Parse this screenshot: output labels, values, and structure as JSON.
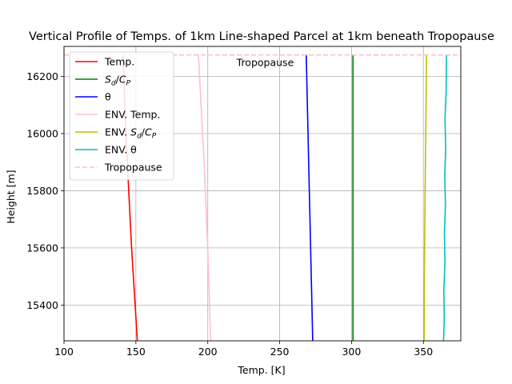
{
  "chart_data": {
    "type": "line",
    "title": "Vertical Profile of Temps. of 1km Line-shaped Parcel at 1km beneath Tropopause",
    "xlabel": "Temp. [K]",
    "ylabel": "Height [m]",
    "xlim": [
      100,
      376
    ],
    "ylim": [
      15275,
      16305
    ],
    "xticks": [
      100,
      150,
      200,
      250,
      300,
      350
    ],
    "yticks": [
      15400,
      15600,
      15800,
      16000,
      16200
    ],
    "grid": true,
    "legend_position": "top-left",
    "annotation": "Tropopause",
    "series": [
      {
        "key": "temp",
        "name": "Temp.",
        "color": "#ff0000",
        "dashed": false,
        "points": [
          [
            151,
            15275
          ],
          [
            147,
            15600
          ],
          [
            144,
            15900
          ],
          [
            143,
            16000
          ],
          [
            141,
            16275
          ]
        ]
      },
      {
        "key": "sd_cp",
        "name": "S_d/C_P",
        "color": "#008000",
        "dashed": false,
        "points": [
          [
            301,
            15275
          ],
          [
            301,
            16275
          ]
        ]
      },
      {
        "key": "theta",
        "name": "θ",
        "color": "#0000ff",
        "dashed": false,
        "points": [
          [
            273,
            15275
          ],
          [
            268.5,
            16275
          ]
        ]
      },
      {
        "key": "env_temp",
        "name": "ENV. Temp.",
        "color": "#ffc0cb",
        "dashed": false,
        "points": [
          [
            202,
            15275
          ],
          [
            200,
            15600
          ],
          [
            197.5,
            15900
          ],
          [
            193.5,
            16275
          ]
        ]
      },
      {
        "key": "env_sd_cp",
        "name": "ENV. S_d/C_P",
        "color": "#bfbf00",
        "dashed": false,
        "points": [
          [
            350.5,
            15275
          ],
          [
            350.6,
            15500
          ],
          [
            351,
            15700
          ],
          [
            351.2,
            15800
          ],
          [
            351.6,
            16000
          ],
          [
            352,
            16200
          ],
          [
            352.2,
            16275
          ]
        ]
      },
      {
        "key": "env_theta",
        "name": "ENV. θ",
        "color": "#00bfbf",
        "dashed": false,
        "points": [
          [
            364,
            15275
          ],
          [
            364.5,
            15350
          ],
          [
            364.2,
            15450
          ],
          [
            365,
            15550
          ],
          [
            364.6,
            15650
          ],
          [
            365.3,
            15750
          ],
          [
            364.8,
            15850
          ],
          [
            365.5,
            15950
          ],
          [
            365,
            16050
          ],
          [
            365.8,
            16150
          ],
          [
            366,
            16275
          ]
        ]
      },
      {
        "key": "tropopause",
        "name": "Tropopause",
        "color": "#ffc0cb",
        "dashed": true,
        "points": [
          [
            100,
            16275
          ],
          [
            376,
            16275
          ]
        ]
      }
    ]
  }
}
